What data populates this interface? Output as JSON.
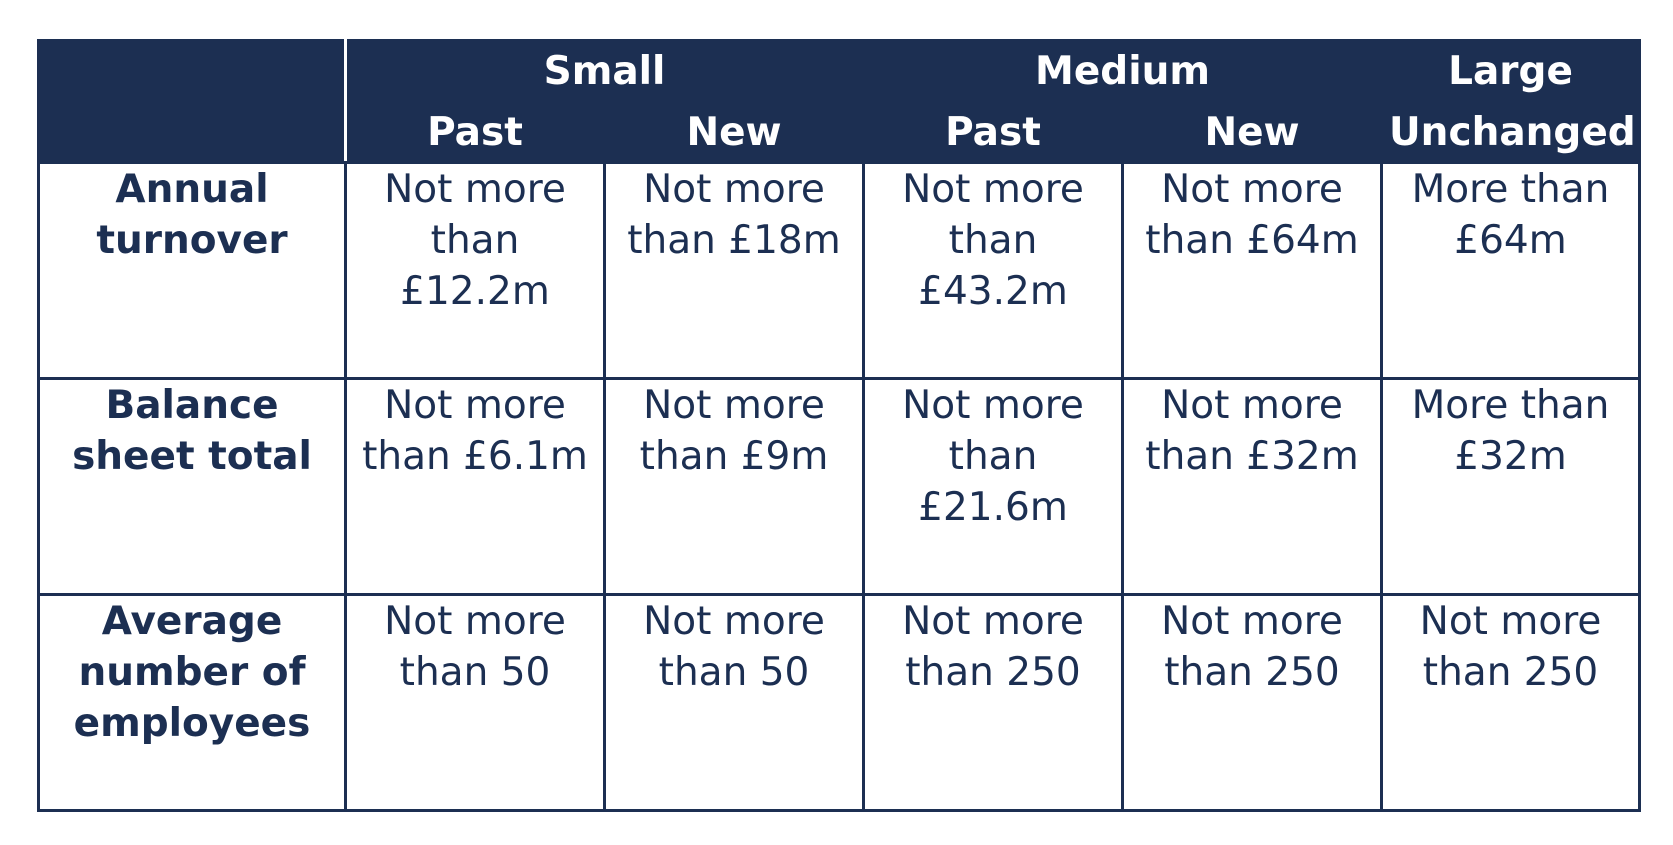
{
  "table": {
    "groups": [
      {
        "label": "Small"
      },
      {
        "label": "Medium"
      },
      {
        "label": "Large"
      }
    ],
    "subheaders": [
      "Past",
      "New",
      "Past",
      "New",
      "Unchanged"
    ],
    "rows": [
      {
        "label": "Annual turnover",
        "cells": [
          "Not more than £12.2m",
          "Not more than £18m",
          "Not more than £43.2m",
          "Not more than £64m",
          "More than £64m"
        ]
      },
      {
        "label": "Balance sheet total",
        "cells": [
          "Not more than £6.1m",
          "Not more than £9m",
          "Not more than £21.6m",
          "Not more than £32m",
          "More than £32m"
        ]
      },
      {
        "label": "Average number of employees",
        "cells": [
          "Not more than 50",
          "Not more than 50",
          "Not more than 250",
          "Not more than 250",
          "Not more than 250"
        ]
      }
    ]
  },
  "colors": {
    "header_bg": "#1c2f52",
    "text": "#1c2f52"
  }
}
